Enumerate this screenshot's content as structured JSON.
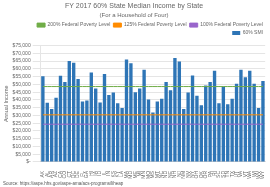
{
  "chart_data": {
    "type": "bar",
    "title": "FY 2017 60% State Median Income by State",
    "subtitle": "(For a Household of Four)",
    "ylabel": "Annual Income",
    "source": "Source: https://aspe.hhs.gov/aspe-ama/acs-programs/liheap",
    "categories": [
      "AK",
      "AL",
      "AR",
      "AZ",
      "CA",
      "CO",
      "CT",
      "DC",
      "DE",
      "FL",
      "GA",
      "HI",
      "IA",
      "ID",
      "IL",
      "IN",
      "KS",
      "KY",
      "LA",
      "MA",
      "MD",
      "ME",
      "MI",
      "MN",
      "MO",
      "MS",
      "MT",
      "NC",
      "ND",
      "NE",
      "NH",
      "NJ",
      "NM",
      "NV",
      "NY",
      "OH",
      "OK",
      "OR",
      "PA",
      "RI",
      "SC",
      "SD",
      "TN",
      "TX",
      "UT",
      "VA",
      "VT",
      "WA",
      "WI",
      "WV",
      "WY"
    ],
    "series": [
      {
        "name": "60% SMI",
        "type": "bar",
        "color": "#2E75B6",
        "values": [
          55200,
          38100,
          34200,
          41400,
          55500,
          51600,
          65000,
          64000,
          53400,
          39000,
          39600,
          57600,
          47400,
          38400,
          56700,
          43200,
          44700,
          37800,
          34800,
          66000,
          63600,
          45000,
          47400,
          59400,
          40200,
          31800,
          39000,
          40800,
          51600,
          46200,
          67000,
          64800,
          34200,
          44700,
          55800,
          42600,
          36600,
          49200,
          51600,
          58800,
          37800,
          48600,
          37200,
          40800,
          50400,
          59400,
          54600,
          58800,
          50400,
          34800,
          52200
        ]
      },
      {
        "name": "200% Federal Poverty Level",
        "type": "line",
        "color": "#70AD47",
        "values": [
          48600,
          48600,
          48600,
          48600,
          48600,
          48600,
          48600,
          48600,
          48600,
          48600,
          48600,
          48600,
          48600,
          48600,
          48600,
          48600,
          48600,
          48600,
          48600,
          48600,
          48600,
          48600,
          48600,
          48600,
          48600,
          48600,
          48600,
          48600,
          48600,
          48600,
          48600,
          48600,
          48600,
          48600,
          48600,
          48600,
          48600,
          48600,
          48600,
          48600,
          48600,
          48600,
          48600,
          48600,
          48600,
          48600,
          48600,
          48600,
          48600,
          48600,
          48600
        ]
      },
      {
        "name": "125% Federal Poverty Level",
        "type": "line",
        "color": "#FF8C00",
        "values": [
          30375,
          30375,
          30375,
          30375,
          30375,
          30375,
          30375,
          30375,
          30375,
          30375,
          30375,
          30375,
          30375,
          30375,
          30375,
          30375,
          30375,
          30375,
          30375,
          30375,
          30375,
          30375,
          30375,
          30375,
          30375,
          30375,
          30375,
          30375,
          30375,
          30375,
          30375,
          30375,
          30375,
          30375,
          30375,
          30375,
          30375,
          30375,
          30375,
          30375,
          30375,
          30375,
          30375,
          30375,
          30375,
          30375,
          30375,
          30375,
          30375,
          30375,
          30375
        ]
      },
      {
        "name": "100% Federal Poverty Level",
        "type": "line",
        "color": "#9966CC",
        "values": [
          24300,
          24300,
          24300,
          24300,
          24300,
          24300,
          24300,
          24300,
          24300,
          24300,
          24300,
          24300,
          24300,
          24300,
          24300,
          24300,
          24300,
          24300,
          24300,
          24300,
          24300,
          24300,
          24300,
          24300,
          24300,
          24300,
          24300,
          24300,
          24300,
          24300,
          24300,
          24300,
          24300,
          24300,
          24300,
          24300,
          24300,
          24300,
          24300,
          24300,
          24300,
          24300,
          24300,
          24300,
          24300,
          24300,
          24300,
          24300,
          24300,
          24300,
          24300
        ]
      }
    ],
    "ylim": [
      0,
      75000
    ],
    "yticks": [
      {
        "value": 0,
        "label": "$-"
      },
      {
        "value": 5000,
        "label": "$5,000"
      },
      {
        "value": 10000,
        "label": "$10,000"
      },
      {
        "value": 15000,
        "label": "$15,000"
      },
      {
        "value": 20000,
        "label": "$20,000"
      },
      {
        "value": 25000,
        "label": "$25,000"
      },
      {
        "value": 30000,
        "label": "$30,000"
      },
      {
        "value": 35000,
        "label": "$35,000"
      },
      {
        "value": 40000,
        "label": "$40,000"
      },
      {
        "value": 45000,
        "label": "$45,000"
      },
      {
        "value": 50000,
        "label": "$50,000"
      },
      {
        "value": 55000,
        "label": "$55,000"
      },
      {
        "value": 60000,
        "label": "$60,000"
      },
      {
        "value": 65000,
        "label": "$65,000"
      },
      {
        "value": 70000,
        "label": "$70,000"
      },
      {
        "value": 75000,
        "label": "$75,000"
      }
    ],
    "grid": true,
    "legend": "upper right"
  }
}
